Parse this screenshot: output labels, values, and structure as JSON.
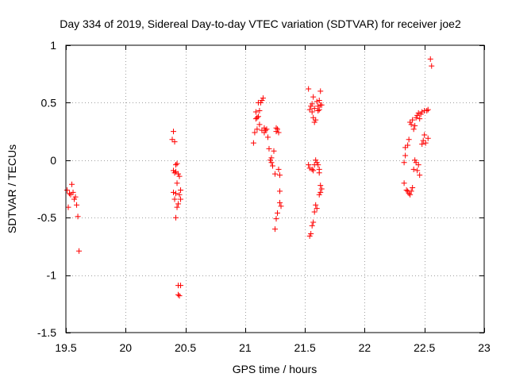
{
  "chart_data": {
    "type": "scatter",
    "title": "Day 334 of 2019, Sidereal Day-to-day VTEC variation (SDTVAR) for receiver joe2",
    "xlabel": "GPS time / hours",
    "ylabel": "SDTVAR / TECUs",
    "xlim": [
      19.5,
      23
    ],
    "ylim": [
      -1.5,
      1
    ],
    "xticks": [
      19.5,
      20,
      20.5,
      21,
      21.5,
      22,
      22.5,
      23
    ],
    "xtick_labels": [
      "19.5",
      "20",
      "20.5",
      "21",
      "21.5",
      "22",
      "22.5",
      "23"
    ],
    "yticks": [
      1,
      0.5,
      0,
      -0.5,
      -1,
      -1.5
    ],
    "ytick_labels": [
      "1",
      "0.5",
      "0",
      "-0.5",
      "-1",
      "-1.5"
    ],
    "grid": true,
    "marker": "+",
    "color": "#ff0000",
    "series": [
      {
        "name": "SDTVAR",
        "points": [
          [
            19.51,
            -0.26
          ],
          [
            19.52,
            -0.41
          ],
          [
            19.53,
            -0.29
          ],
          [
            19.54,
            -0.3
          ],
          [
            19.55,
            -0.21
          ],
          [
            19.56,
            -0.28
          ],
          [
            19.57,
            -0.34
          ],
          [
            19.58,
            -0.32
          ],
          [
            19.59,
            -0.39
          ],
          [
            19.6,
            -0.49
          ],
          [
            19.61,
            -0.79
          ],
          [
            20.39,
            0.18
          ],
          [
            20.4,
            0.25
          ],
          [
            20.41,
            0.16
          ],
          [
            20.4,
            -0.09
          ],
          [
            20.41,
            -0.11
          ],
          [
            20.4,
            -0.28
          ],
          [
            20.41,
            -0.34
          ],
          [
            20.42,
            -0.29
          ],
          [
            20.42,
            -0.04
          ],
          [
            20.43,
            -0.03
          ],
          [
            20.42,
            -0.1
          ],
          [
            20.43,
            -0.2
          ],
          [
            20.43,
            -0.41
          ],
          [
            20.42,
            -0.5
          ],
          [
            20.44,
            -0.38
          ],
          [
            20.44,
            -0.12
          ],
          [
            20.45,
            -0.14
          ],
          [
            20.45,
            -0.3
          ],
          [
            20.46,
            -0.26
          ],
          [
            20.46,
            -0.34
          ],
          [
            20.44,
            -1.09
          ],
          [
            20.46,
            -1.09
          ],
          [
            20.44,
            -1.17
          ],
          [
            20.45,
            -1.18
          ],
          [
            21.07,
            0.15
          ],
          [
            21.08,
            0.24
          ],
          [
            21.09,
            0.36
          ],
          [
            21.09,
            0.42
          ],
          [
            21.1,
            0.27
          ],
          [
            21.1,
            0.37
          ],
          [
            21.11,
            0.5
          ],
          [
            21.11,
            0.38
          ],
          [
            21.12,
            0.43
          ],
          [
            21.12,
            0.31
          ],
          [
            21.13,
            0.5
          ],
          [
            21.14,
            0.52
          ],
          [
            21.15,
            0.54
          ],
          [
            21.14,
            0.26
          ],
          [
            21.16,
            0.24
          ],
          [
            21.16,
            0.28
          ],
          [
            21.17,
            0.26
          ],
          [
            21.18,
            0.27
          ],
          [
            21.19,
            0.2
          ],
          [
            21.2,
            0.1
          ],
          [
            21.21,
            0.0
          ],
          [
            21.22,
            -0.02
          ],
          [
            21.22,
            0.02
          ],
          [
            21.23,
            -0.05
          ],
          [
            21.24,
            0.08
          ],
          [
            21.25,
            -0.12
          ],
          [
            21.26,
            0.28
          ],
          [
            21.26,
            0.25
          ],
          [
            21.27,
            0.27
          ],
          [
            21.28,
            0.24
          ],
          [
            21.28,
            -0.08
          ],
          [
            21.29,
            -0.13
          ],
          [
            21.29,
            -0.27
          ],
          [
            21.29,
            -0.37
          ],
          [
            21.3,
            -0.4
          ],
          [
            21.26,
            -0.51
          ],
          [
            21.27,
            -0.46
          ],
          [
            21.25,
            -0.6
          ],
          [
            21.53,
            0.62
          ],
          [
            21.54,
            0.44
          ],
          [
            21.55,
            0.47
          ],
          [
            21.56,
            0.49
          ],
          [
            21.56,
            0.42
          ],
          [
            21.57,
            0.55
          ],
          [
            21.57,
            0.37
          ],
          [
            21.58,
            0.33
          ],
          [
            21.58,
            0.45
          ],
          [
            21.59,
            0.35
          ],
          [
            21.6,
            0.51
          ],
          [
            21.61,
            0.43
          ],
          [
            21.61,
            0.47
          ],
          [
            21.62,
            0.52
          ],
          [
            21.63,
            0.48
          ],
          [
            21.63,
            0.6
          ],
          [
            21.64,
            0.48
          ],
          [
            21.62,
            0.44
          ],
          [
            21.53,
            -0.04
          ],
          [
            21.54,
            -0.07
          ],
          [
            21.56,
            -0.08
          ],
          [
            21.57,
            -0.09
          ],
          [
            21.58,
            -0.04
          ],
          [
            21.59,
            0.0
          ],
          [
            21.6,
            -0.02
          ],
          [
            21.61,
            -0.04
          ],
          [
            21.62,
            -0.08
          ],
          [
            21.62,
            -0.11
          ],
          [
            21.63,
            -0.22
          ],
          [
            21.64,
            -0.25
          ],
          [
            21.63,
            -0.28
          ],
          [
            21.62,
            -0.3
          ],
          [
            21.59,
            -0.39
          ],
          [
            21.6,
            -0.42
          ],
          [
            21.58,
            -0.45
          ],
          [
            21.57,
            -0.54
          ],
          [
            21.56,
            -0.57
          ],
          [
            21.55,
            -0.64
          ],
          [
            21.54,
            -0.66
          ],
          [
            22.33,
            -0.2
          ],
          [
            22.33,
            -0.02
          ],
          [
            22.34,
            0.04
          ],
          [
            22.34,
            0.11
          ],
          [
            22.35,
            -0.26
          ],
          [
            22.36,
            -0.27
          ],
          [
            22.36,
            0.13
          ],
          [
            22.37,
            0.18
          ],
          [
            22.37,
            -0.29
          ],
          [
            22.38,
            -0.3
          ],
          [
            22.38,
            0.33
          ],
          [
            22.39,
            0.31
          ],
          [
            22.39,
            -0.27
          ],
          [
            22.4,
            0.35
          ],
          [
            22.4,
            -0.24
          ],
          [
            22.41,
            -0.08
          ],
          [
            22.41,
            0.27
          ],
          [
            22.42,
            0.3
          ],
          [
            22.42,
            0.0
          ],
          [
            22.43,
            -0.02
          ],
          [
            22.43,
            0.37
          ],
          [
            22.44,
            0.39
          ],
          [
            22.44,
            -0.09
          ],
          [
            22.45,
            -0.04
          ],
          [
            22.45,
            0.41
          ],
          [
            22.46,
            0.36
          ],
          [
            22.46,
            -0.13
          ],
          [
            22.47,
            0.4
          ],
          [
            22.48,
            0.14
          ],
          [
            22.48,
            0.42
          ],
          [
            22.49,
            0.17
          ],
          [
            22.5,
            0.22
          ],
          [
            22.5,
            0.43
          ],
          [
            22.51,
            0.15
          ],
          [
            22.52,
            0.43
          ],
          [
            22.53,
            0.44
          ],
          [
            22.53,
            0.19
          ],
          [
            22.55,
            0.88
          ],
          [
            22.56,
            0.82
          ]
        ]
      }
    ]
  }
}
